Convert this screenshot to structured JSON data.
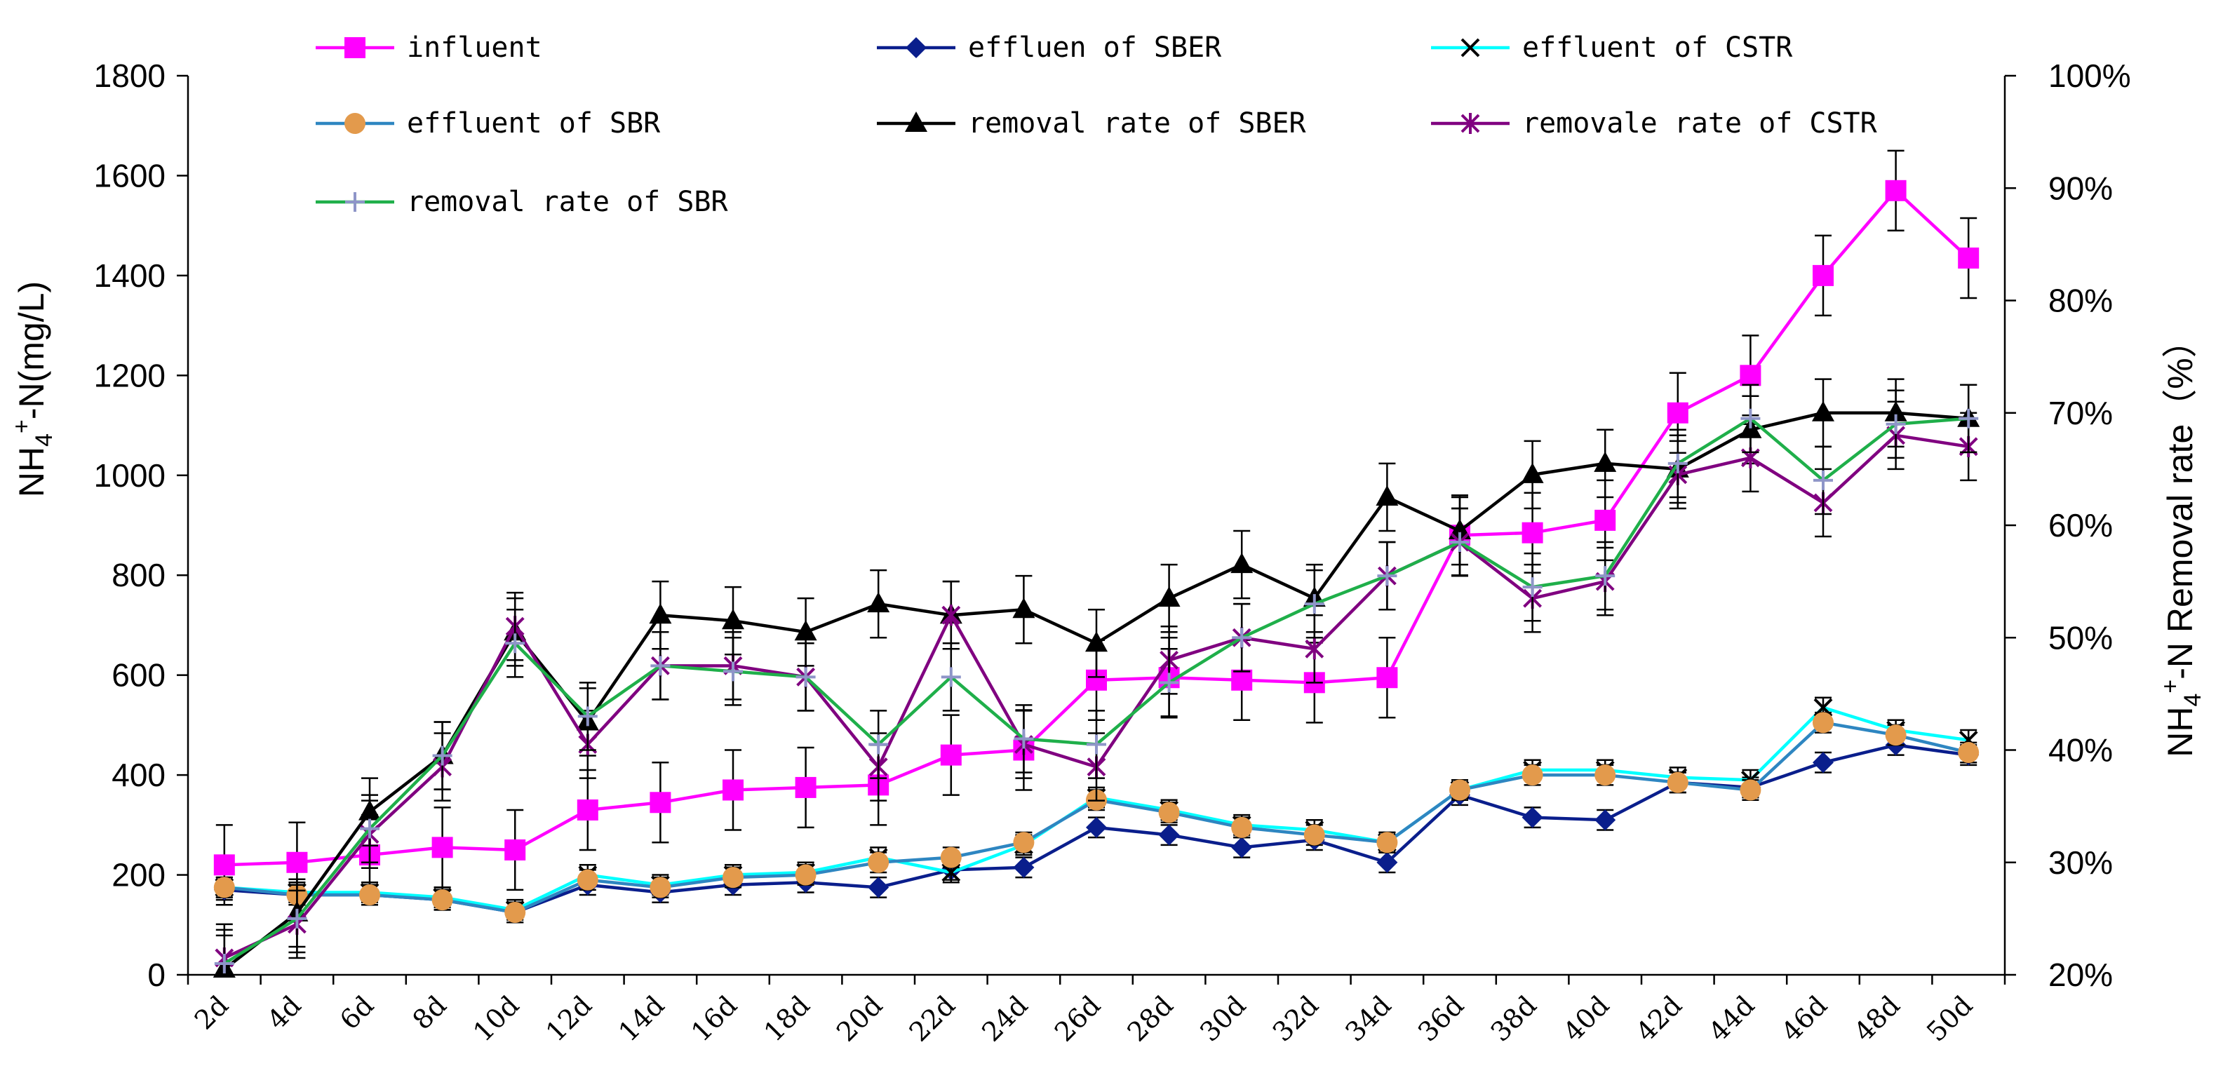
{
  "chart_data": {
    "type": "line",
    "categories": [
      "2d",
      "4d",
      "6d",
      "8d",
      "10d",
      "12d",
      "14d",
      "16d",
      "18d",
      "20d",
      "22d",
      "24d",
      "26d",
      "28d",
      "30d",
      "32d",
      "34d",
      "36d",
      "38d",
      "40d",
      "42d",
      "44d",
      "46d",
      "48d",
      "50d"
    ],
    "left_axis": {
      "label_main": "NH",
      "label_sub": "4",
      "label_sup": "+",
      "label_tail": "-N(mg/L)",
      "ylim": [
        0,
        1800
      ],
      "ticks": [
        "0",
        "200",
        "400",
        "600",
        "800",
        "1000",
        "1200",
        "1400",
        "1600",
        "1800"
      ]
    },
    "right_axis": {
      "label_main": "NH",
      "label_sub": "4",
      "label_sup": "+",
      "label_tail": "-N Removal rate（%）",
      "ylim": [
        20,
        100
      ],
      "ticks": [
        "20%",
        "30%",
        "40%",
        "50%",
        "60%",
        "70%",
        "80%",
        "90%",
        "100%"
      ]
    },
    "series": [
      {
        "name": "influent",
        "axis": "left",
        "color": "#FF00FF",
        "marker": "square",
        "values": [
          220,
          225,
          240,
          255,
          250,
          330,
          345,
          370,
          375,
          380,
          440,
          450,
          590,
          595,
          590,
          585,
          595,
          880,
          885,
          910,
          1125,
          1200,
          1400,
          1570,
          1435
        ],
        "errors": [
          80,
          80,
          80,
          80,
          80,
          80,
          80,
          80,
          80,
          80,
          80,
          80,
          80,
          80,
          80,
          80,
          80,
          80,
          80,
          80,
          80,
          80,
          80,
          80,
          80
        ]
      },
      {
        "name": "effluen of SBER",
        "axis": "left",
        "color": "#0A1E8C",
        "marker": "diamond",
        "values": [
          170,
          160,
          160,
          150,
          125,
          180,
          165,
          180,
          185,
          175,
          210,
          215,
          295,
          280,
          255,
          270,
          225,
          360,
          315,
          310,
          385,
          375,
          425,
          460,
          440
        ],
        "errors": [
          20,
          20,
          20,
          20,
          20,
          20,
          20,
          20,
          20,
          20,
          20,
          20,
          20,
          20,
          20,
          20,
          20,
          20,
          20,
          20,
          20,
          20,
          20,
          20,
          20
        ]
      },
      {
        "name": "effluent of CSTR",
        "axis": "left",
        "color": "#00FFFF",
        "marker": "x",
        "values": [
          175,
          165,
          165,
          155,
          130,
          200,
          180,
          200,
          205,
          235,
          205,
          260,
          355,
          330,
          300,
          290,
          265,
          370,
          410,
          410,
          395,
          390,
          535,
          490,
          470
        ],
        "errors": [
          20,
          20,
          20,
          20,
          20,
          20,
          20,
          20,
          20,
          20,
          20,
          20,
          20,
          20,
          20,
          20,
          20,
          20,
          20,
          20,
          20,
          20,
          20,
          20,
          20
        ]
      },
      {
        "name": "effluent of SBR",
        "axis": "left",
        "color": "#2E86C1",
        "marker": "circle",
        "marker_fill": "#E39A4C",
        "values": [
          175,
          160,
          160,
          150,
          125,
          190,
          175,
          195,
          200,
          225,
          235,
          265,
          350,
          325,
          295,
          280,
          265,
          370,
          400,
          400,
          385,
          370,
          505,
          480,
          445
        ],
        "errors": [
          20,
          20,
          20,
          20,
          20,
          20,
          20,
          20,
          20,
          20,
          20,
          20,
          20,
          20,
          20,
          20,
          20,
          20,
          20,
          20,
          20,
          20,
          20,
          20,
          20
        ]
      },
      {
        "name": "removal rate of SBER",
        "axis": "right",
        "color": "#000000",
        "marker": "triangle",
        "values": [
          20.5,
          25.5,
          34.5,
          39.5,
          50.5,
          42.5,
          52,
          51.5,
          50.5,
          53,
          52,
          52.5,
          49.5,
          53.5,
          56.5,
          53.5,
          62.5,
          59.5,
          64.5,
          65.5,
          65,
          68.5,
          70,
          70,
          69.5
        ],
        "errors": [
          3,
          3,
          3,
          3,
          3,
          3,
          3,
          3,
          3,
          3,
          3,
          3,
          3,
          3,
          3,
          3,
          3,
          3,
          3,
          3,
          3,
          3,
          3,
          3,
          3
        ]
      },
      {
        "name": "removale rate of CSTR",
        "axis": "right",
        "color": "#800080",
        "marker": "asterisk",
        "values": [
          21.5,
          24.5,
          32.5,
          38.5,
          51,
          40.5,
          47.5,
          47.5,
          46.5,
          38.5,
          52,
          40.5,
          38.5,
          48,
          50,
          49,
          55.5,
          58.5,
          53.5,
          55,
          64.5,
          66,
          62,
          68,
          67
        ],
        "errors": [
          3,
          3,
          3,
          3,
          3,
          3,
          3,
          3,
          3,
          3,
          3,
          3,
          3,
          3,
          3,
          3,
          3,
          3,
          3,
          3,
          3,
          3,
          3,
          3,
          3
        ]
      },
      {
        "name": "removal rate of SBR",
        "axis": "right",
        "color": "#1FAF4A",
        "marker": "plus",
        "marker_color": "#8E95C8",
        "values": [
          21,
          25,
          33,
          39.5,
          49.5,
          43,
          47.5,
          47,
          46.5,
          40.5,
          46.5,
          41,
          40.5,
          46,
          50,
          53,
          55.5,
          58.5,
          54.5,
          55.5,
          65.5,
          69.5,
          64,
          69,
          69.5
        ],
        "errors": [
          3,
          3,
          3,
          3,
          3,
          3,
          3,
          3,
          3,
          3,
          3,
          3,
          3,
          3,
          3,
          3,
          3,
          3,
          3,
          3,
          3,
          3,
          3,
          3,
          3
        ]
      }
    ],
    "legend_position": "top"
  }
}
